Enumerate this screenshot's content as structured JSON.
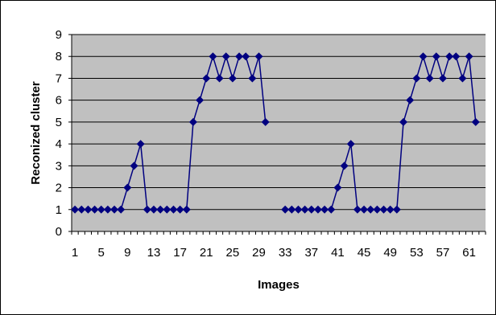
{
  "chart_data": {
    "type": "line",
    "title": "",
    "xlabel": "Images",
    "ylabel": "Reconized cluster",
    "ylim": [
      0,
      9
    ],
    "yticks": [
      "0",
      "1",
      "2",
      "3",
      "4",
      "5",
      "6",
      "7",
      "8",
      "9"
    ],
    "xticks": [
      "1",
      "5",
      "9",
      "13",
      "17",
      "21",
      "25",
      "29",
      "33",
      "37",
      "41",
      "45",
      "49",
      "53",
      "57",
      "61"
    ],
    "grid": true,
    "legend": "none",
    "colors": {
      "series": "#000080",
      "plot_background": "#C0C0C0",
      "gridline": "#000000"
    },
    "series": [
      {
        "x": [
          1,
          2,
          3,
          4,
          5,
          6,
          7,
          8,
          9,
          10,
          11,
          12,
          13,
          14,
          15,
          16,
          17,
          18,
          19,
          20,
          21,
          22,
          23,
          24,
          25,
          26,
          27,
          28,
          29,
          30,
          31,
          32,
          33,
          34,
          35,
          36,
          37,
          38,
          39,
          40,
          41,
          42,
          43,
          44,
          45,
          46,
          47,
          48,
          49,
          50,
          51,
          52,
          53,
          54,
          55,
          56,
          57,
          58,
          59,
          60,
          61,
          62,
          63
        ],
        "values": [
          1,
          1,
          1,
          1,
          1,
          1,
          1,
          1,
          2,
          3,
          4,
          1,
          1,
          1,
          1,
          1,
          1,
          1,
          5,
          6,
          7,
          8,
          7,
          8,
          7,
          8,
          8,
          7,
          8,
          5,
          null,
          null,
          1,
          1,
          1,
          1,
          1,
          1,
          1,
          1,
          2,
          3,
          4,
          1,
          1,
          1,
          1,
          1,
          1,
          1,
          5,
          6,
          7,
          8,
          7,
          8,
          7,
          8,
          8,
          7,
          8,
          5,
          null
        ]
      }
    ]
  }
}
